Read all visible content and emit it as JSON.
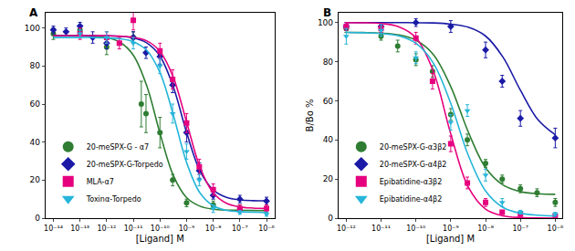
{
  "chart_data": [
    {
      "type": "scatter",
      "title": "A",
      "x_label": "[Ligand] M",
      "log": "x",
      "grid": false,
      "legend": "lower left",
      "xlim": [
        5e-15,
        2e-06
      ],
      "xticks": [
        {
          "value": 1e-14,
          "label": "10⁻¹⁴"
        },
        {
          "value": 1e-13,
          "label": "10⁻¹³"
        },
        {
          "value": 1e-12,
          "label": "10⁻¹²"
        },
        {
          "value": 1e-11,
          "label": "10⁻¹¹"
        },
        {
          "value": 1e-10,
          "label": "10⁻¹⁰"
        },
        {
          "value": 1e-09,
          "label": "10⁻⁹"
        },
        {
          "value": 1e-08,
          "label": "10⁻⁸"
        },
        {
          "value": 1e-07,
          "label": "10⁻⁷"
        },
        {
          "value": 1e-06,
          "label": "10⁻⁶"
        }
      ],
      "ylim": [
        0,
        108
      ],
      "yticks": [
        0,
        20,
        40,
        60,
        80,
        100
      ],
      "fit_x": [
        1e-14,
        3.162e-14,
        1e-13,
        3.162e-13,
        1e-12,
        3.162e-12,
        1e-11,
        3.162e-11,
        1e-10,
        3.162e-10,
        1e-09,
        3.162e-09,
        1e-08,
        3.162e-08,
        1e-07,
        3.162e-07,
        1e-06
      ],
      "series": [
        {
          "name": "20-meSPX-G - α7",
          "color": "#2e7d32",
          "marker": "circle",
          "x": [
            1e-14,
            1e-13,
            1e-12,
            1e-11,
            2e-11,
            3e-11,
            1e-10,
            3e-10,
            1e-09,
            1e-08,
            1e-07,
            1e-06
          ],
          "values": [
            97,
            99,
            90,
            95,
            60,
            55,
            45,
            20,
            8,
            7,
            5,
            5
          ],
          "errors": [
            3,
            2,
            4,
            3,
            12,
            10,
            8,
            3,
            2,
            2,
            2,
            2
          ],
          "fit_values": [
            96,
            96,
            95.9,
            95.6,
            94.9,
            92.5,
            85.7,
            69.8,
            44.7,
            22.5,
            10.8,
            6.3,
            4.7,
            4.2,
            4.1,
            4,
            4
          ]
        },
        {
          "name": "20-meSPX-G-Torpedo",
          "color": "#1a1aa6",
          "marker": "diamond",
          "x": [
            1e-14,
            3e-14,
            1e-13,
            3e-13,
            1e-12,
            1e-11,
            3e-11,
            1e-10,
            3e-10,
            1e-09,
            3e-09,
            1e-08,
            1e-07,
            1e-06
          ],
          "values": [
            99,
            98,
            101,
            95,
            92,
            95,
            87,
            85,
            70,
            45,
            25,
            12,
            10,
            9
          ],
          "errors": [
            2,
            2,
            2,
            3,
            3,
            3,
            3,
            4,
            4,
            5,
            4,
            2,
            2,
            2
          ],
          "fit_values": [
            96,
            96,
            96,
            96,
            95.9,
            95.6,
            94.8,
            92.2,
            85.2,
            69.1,
            45.1,
            24.9,
            14.8,
            10.9,
            9.6,
            9.2,
            9.1
          ]
        },
        {
          "name": "MLA-α7",
          "color": "#e6007e",
          "marker": "square",
          "x": [
            1e-13,
            1e-12,
            3e-12,
            1e-11,
            1e-10,
            3e-10,
            1e-09,
            3e-09,
            1e-08,
            1e-07,
            1e-06
          ],
          "values": [
            97,
            95,
            92,
            104,
            88,
            73,
            50,
            27,
            15,
            5,
            5
          ],
          "errors": [
            3,
            3,
            3,
            5,
            4,
            5,
            5,
            4,
            3,
            2,
            2
          ],
          "fit_values": [
            96,
            96,
            96,
            96,
            95.9,
            95.7,
            95.1,
            93.3,
            87.7,
            74.1,
            50.5,
            26.9,
            13.3,
            7.8,
            5.9,
            5.3,
            5.1
          ]
        },
        {
          "name": "Toxinα-Torpedo",
          "color": "#26b5d9",
          "marker": "triangle-down",
          "x": [
            1e-13,
            1e-12,
            1e-11,
            1e-10,
            3e-10,
            1e-09,
            3e-09,
            1e-08,
            1e-07,
            1e-06
          ],
          "values": [
            97,
            95,
            92,
            80,
            55,
            35,
            20,
            5,
            3,
            2
          ],
          "errors": [
            2,
            3,
            3,
            4,
            5,
            4,
            3,
            2,
            1,
            1
          ],
          "fit_values": [
            95,
            95,
            95,
            95,
            94.8,
            94.3,
            92.8,
            88.3,
            76.6,
            54.4,
            29.3,
            13.3,
            6.5,
            4.1,
            3.4,
            3.1,
            3.0
          ]
        }
      ]
    },
    {
      "type": "scatter",
      "title": "B",
      "x_label": "[Ligand] M",
      "y_label": "B/Bo %",
      "log": "x",
      "grid": false,
      "legend": "lower left",
      "xlim": [
        6e-13,
        1.6e-06
      ],
      "xticks": [
        {
          "value": 1e-12,
          "label": "10⁻¹²"
        },
        {
          "value": 1e-11,
          "label": "10⁻¹¹"
        },
        {
          "value": 1e-10,
          "label": "10⁻¹⁰"
        },
        {
          "value": 1e-09,
          "label": "10⁻⁹"
        },
        {
          "value": 1e-08,
          "label": "10⁻⁸"
        },
        {
          "value": 1e-07,
          "label": "10⁻⁷"
        },
        {
          "value": 1e-06,
          "label": "10⁻⁶"
        }
      ],
      "ylim": [
        0,
        105
      ],
      "yticks": [
        0,
        20,
        40,
        60,
        80,
        100
      ],
      "fit_x": [
        1e-12,
        3.162e-12,
        1e-11,
        3.162e-11,
        1e-10,
        3.162e-10,
        1e-09,
        3.162e-09,
        1e-08,
        3.162e-08,
        1e-07,
        3.162e-07,
        1e-06
      ],
      "series": [
        {
          "name": "20-meSPX-G-α3β2",
          "color": "#2e7d32",
          "marker": "circle",
          "x": [
            1e-12,
            1e-11,
            3e-11,
            1e-10,
            3e-10,
            1e-09,
            3e-09,
            1e-08,
            3e-08,
            1e-07,
            3e-07,
            1e-06
          ],
          "values": [
            97,
            93,
            88,
            81,
            75,
            53,
            40,
            28,
            20,
            15,
            13,
            8
          ],
          "errors": [
            2,
            2,
            3,
            3,
            3,
            3,
            3,
            2,
            2,
            2,
            2,
            2
          ],
          "fit_values": [
            95,
            94.9,
            94.6,
            93.7,
            91.0,
            83.7,
            67.3,
            44.2,
            25.8,
            17.0,
            13.6,
            12.5,
            12.2
          ]
        },
        {
          "name": "20-meSPX-G-α4β2",
          "color": "#1a1aa6",
          "marker": "diamond",
          "x": [
            1e-12,
            1e-11,
            1e-10,
            1e-09,
            1e-08,
            3e-08,
            1e-07,
            1e-06
          ],
          "values": [
            98,
            98,
            100,
            98,
            86,
            70,
            51,
            41
          ],
          "errors": [
            2,
            2,
            2,
            3,
            4,
            3,
            4,
            5
          ],
          "fit_values": [
            100,
            100,
            100,
            100,
            99.9,
            99.8,
            99.2,
            97.6,
            93.1,
            82.3,
            65.4,
            50.4,
            42.6
          ]
        },
        {
          "name": "Epibatidine-α3β2",
          "color": "#e6007e",
          "marker": "square",
          "x": [
            1e-12,
            1e-11,
            1e-10,
            3e-10,
            1e-09,
            3e-09,
            1e-08,
            3e-08,
            1e-07,
            1e-06
          ],
          "values": [
            98,
            97,
            92,
            70,
            38,
            18,
            8,
            3,
            2,
            1
          ],
          "errors": [
            2,
            2,
            3,
            4,
            4,
            3,
            2,
            1,
            1,
            1
          ],
          "fit_values": [
            100,
            99.9,
            99.5,
            97.9,
            92.3,
            75.1,
            43.1,
            16.0,
            4.6,
            1.2,
            0.3,
            0.1,
            0
          ]
        },
        {
          "name": "Epibatidine-α4β2",
          "color": "#26b5d9",
          "marker": "triangle-down",
          "x": [
            1e-12,
            1e-11,
            1e-10,
            1e-09,
            3e-09,
            1e-08,
            3e-08,
            1e-07,
            1e-06
          ],
          "values": [
            93,
            96,
            82,
            49,
            55,
            22,
            8,
            3,
            2
          ],
          "errors": [
            4,
            3,
            3,
            4,
            3,
            3,
            2,
            1,
            1
          ],
          "fit_values": [
            95,
            94.8,
            94.4,
            93.2,
            89.4,
            79.3,
            58.7,
            32.3,
            13.9,
            5.5,
            2.5,
            1.5,
            1.1
          ]
        }
      ]
    }
  ]
}
